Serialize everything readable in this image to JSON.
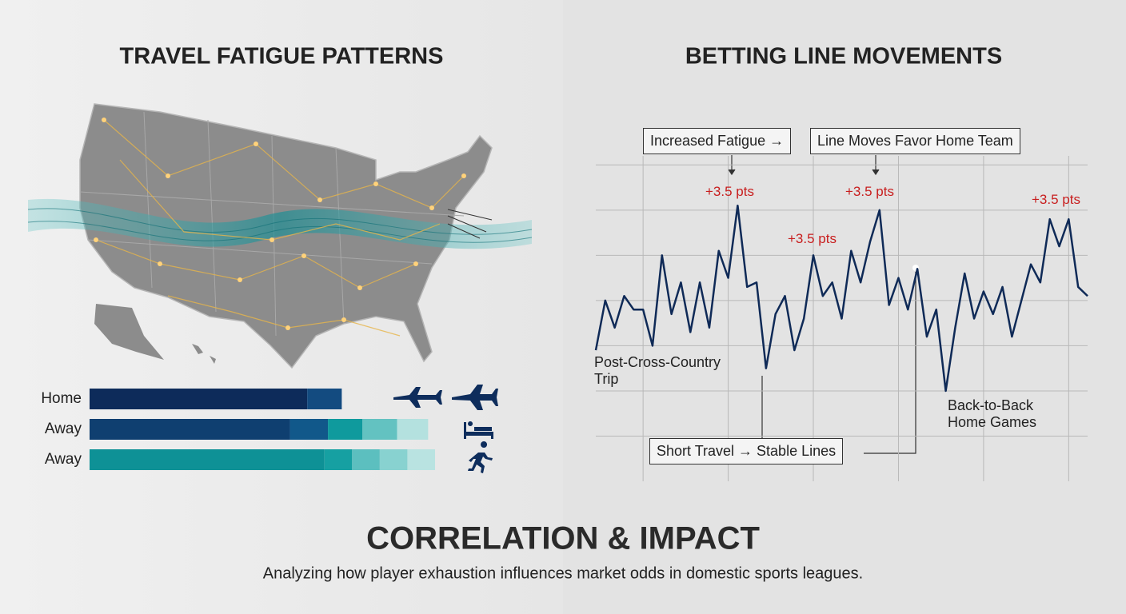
{
  "chart_data": [
    {
      "type": "stacked-bar",
      "orientation": "horizontal",
      "title": "TRAVEL FATIGUE PATTERNS",
      "categories": [
        "Home",
        "Away",
        "Away"
      ],
      "series": [
        {
          "values": [
            63,
            58,
            68
          ],
          "colors": [
            "#0d2b5a",
            "#0f3f70",
            "#0e9196"
          ]
        },
        {
          "values": [
            10,
            11,
            8
          ],
          "colors": [
            "#134b80",
            "#11588a",
            "#16a0a2"
          ]
        },
        {
          "values": [
            null,
            10,
            8
          ],
          "colors": [
            null,
            "#0f9a9d",
            "#5cbfbf"
          ]
        },
        {
          "values": [
            null,
            10,
            8
          ],
          "colors": [
            null,
            "#63c2c1",
            "#88d2d0"
          ]
        },
        {
          "values": [
            null,
            9,
            8
          ],
          "colors": [
            null,
            "#b4e1df",
            "#b9e3e1"
          ]
        }
      ],
      "xlim": [
        0,
        100
      ]
    },
    {
      "type": "line",
      "title": "BETTING LINE MOVEMENTS",
      "x": [
        0,
        1,
        2,
        3,
        4,
        5,
        6,
        7,
        8,
        9,
        10,
        11,
        12,
        13,
        14,
        15,
        16,
        17,
        18,
        19,
        20,
        21,
        22,
        23,
        24,
        25,
        26,
        27,
        28,
        29,
        30,
        31,
        32,
        33,
        34,
        35,
        36,
        37,
        38,
        39,
        40,
        41,
        42,
        43,
        44,
        45,
        46,
        47,
        48,
        49,
        50,
        51,
        52
      ],
      "values": [
        19,
        30,
        24,
        31,
        28,
        28,
        20,
        40,
        27,
        34,
        23,
        34,
        24,
        41,
        35,
        51,
        33,
        34,
        15,
        27,
        31,
        19,
        26,
        40,
        31,
        34,
        26,
        41,
        34,
        43,
        50,
        29,
        35,
        28,
        37,
        22,
        28,
        10,
        24,
        36,
        26,
        32,
        27,
        33,
        22,
        30,
        38,
        34,
        48,
        42,
        48,
        33,
        31
      ],
      "color": "#0f2a57",
      "xlim": [
        0,
        52
      ],
      "ylim": [
        -10,
        62
      ],
      "xticks": [
        5,
        14,
        23,
        32,
        41,
        50
      ],
      "yticks": [
        0,
        10,
        20,
        30,
        40,
        50,
        60
      ],
      "grid": true,
      "tick_labels": false,
      "annotations": [
        "+3.5 pts",
        "+3.5 pts",
        "+3.5 pts",
        "+3.5 pts",
        "Increased Fatigue →",
        "Line Moves Favor Home Team",
        "Post-Cross-Country Trip",
        "Back-to-Back Home Games",
        "Short Travel → Stable Lines"
      ]
    }
  ],
  "footer": {
    "title": "CORRELATION & IMPACT",
    "subtitle": "Analyzing how player exhaustion influences market odds in domestic sports leagues."
  }
}
